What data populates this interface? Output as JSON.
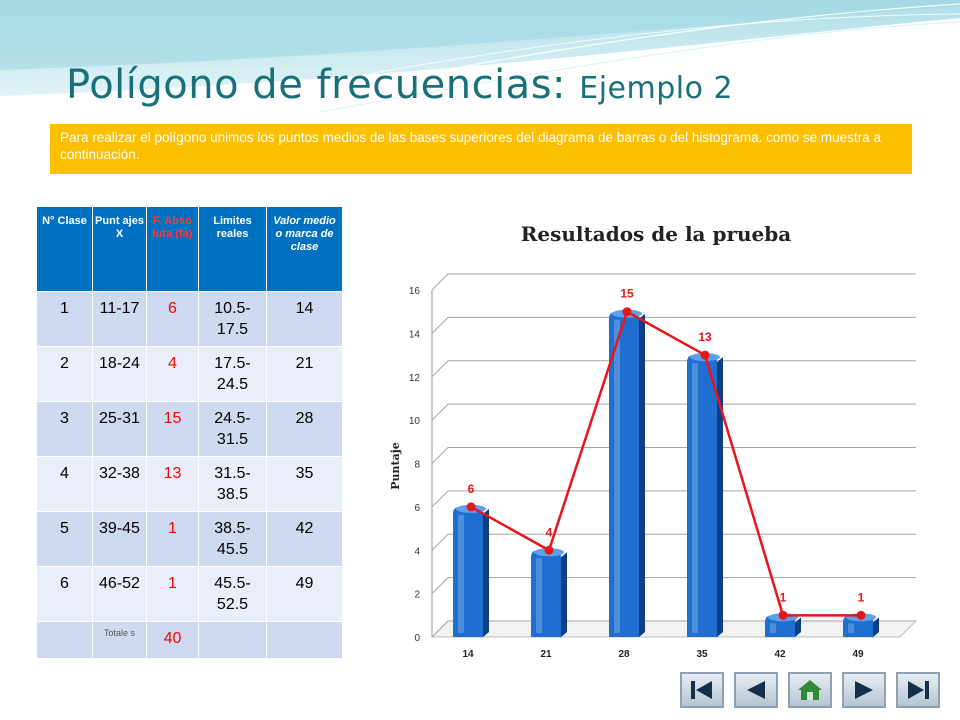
{
  "title": {
    "main": "Polígono de frecuencias:",
    "sub": "Ejemplo 2"
  },
  "intro": "Para realizar el polígono unimos los puntos medios de las bases superiores del diagrama de barras o del histograma. como se muestra a continuación.",
  "table": {
    "headers": [
      "N° Clase",
      "Punt ajes X",
      "F. Abso luta (fa)",
      "Limites reales",
      "Valor medio o marca de clase"
    ],
    "rows": [
      [
        "1",
        "11-17",
        "6",
        "10.5-17.5",
        "14"
      ],
      [
        "2",
        "18-24",
        "4",
        "17.5-24.5",
        "21"
      ],
      [
        "3",
        "25-31",
        "15",
        "24.5-31.5",
        "28"
      ],
      [
        "4",
        "32-38",
        "13",
        "31.5-38.5",
        "35"
      ],
      [
        "5",
        "39-45",
        "1",
        "38.5-45.5",
        "42"
      ],
      [
        "6",
        "46-52",
        "1",
        "45.5-52.5",
        "49"
      ]
    ],
    "totals_label": "Totale s",
    "totals_value": "40"
  },
  "chart_data": {
    "type": "bar",
    "title": "Resultados de la prueba",
    "xlabel": "",
    "ylabel": "Puntaje",
    "categories": [
      "14",
      "21",
      "28",
      "35",
      "42",
      "49"
    ],
    "values": [
      6,
      4,
      15,
      13,
      1,
      1
    ],
    "ylim": [
      0,
      16
    ],
    "yticks": [
      0,
      2,
      4,
      6,
      8,
      10,
      12,
      14,
      16
    ],
    "grid": true,
    "bars_3d": true,
    "overlay": {
      "type": "line",
      "values": [
        6,
        4,
        15,
        13,
        1,
        1
      ],
      "color": "#e8151b",
      "show_labels": true
    },
    "bar_color": "#1f6fd1"
  },
  "nav": {
    "buttons": [
      {
        "name": "first-slide-button",
        "icon": "first-icon"
      },
      {
        "name": "previous-slide-button",
        "icon": "previous-icon"
      },
      {
        "name": "home-button",
        "icon": "home-icon"
      },
      {
        "name": "next-slide-button",
        "icon": "next-icon"
      },
      {
        "name": "last-slide-button",
        "icon": "last-icon"
      }
    ]
  }
}
